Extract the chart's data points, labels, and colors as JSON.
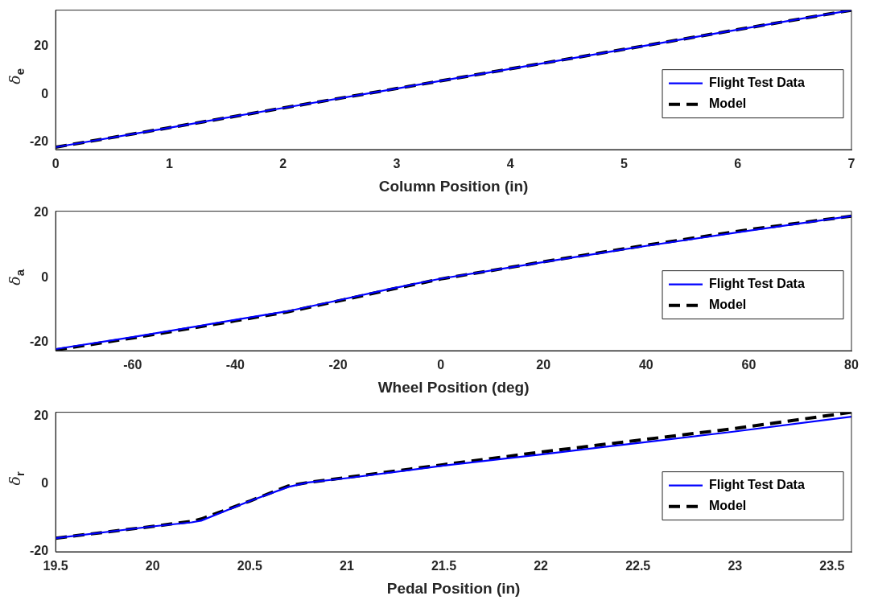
{
  "chart_data": [
    {
      "type": "line",
      "xlabel": "Column Position (in)",
      "ylabel": "δ$_{e}$",
      "xlim": [
        0,
        7
      ],
      "xticks": [
        0,
        1,
        2,
        3,
        4,
        5,
        6,
        7
      ],
      "ylim": [
        -23,
        35
      ],
      "yticks": [
        -20,
        0,
        20
      ],
      "grid": false,
      "legend": "right",
      "marker": "none",
      "series": [
        {
          "name": "Flight Test Data",
          "color": "#0000ff",
          "line_style": "solid",
          "x": [
            0,
            1,
            2,
            3,
            4,
            5,
            6,
            7
          ],
          "values": [
            -22,
            -13.9,
            -5.7,
            2.4,
            10.6,
            18.7,
            26.9,
            35
          ]
        },
        {
          "name": "Model",
          "color": "#000000",
          "line_style": "dashed",
          "x": [
            0,
            1,
            2,
            3,
            4,
            5,
            6,
            7
          ],
          "values": [
            -22,
            -13.9,
            -5.7,
            2.4,
            10.6,
            18.7,
            26.9,
            35
          ]
        }
      ]
    },
    {
      "type": "line",
      "xlabel": "Wheel Position (deg)",
      "ylabel": "δ$_{a}$",
      "xlim": [
        -75,
        80
      ],
      "xticks": [
        -60,
        -40,
        -20,
        0,
        20,
        40,
        60,
        80
      ],
      "ylim": [
        -22.5,
        20.5
      ],
      "yticks": [
        -20,
        0,
        20
      ],
      "grid": false,
      "legend": "right",
      "marker": "none",
      "series": [
        {
          "name": "Flight Test Data",
          "color": "#0000ff",
          "line_style": "solid",
          "x": [
            -75,
            -60,
            -40,
            -30,
            -20,
            -10,
            0,
            20,
            40,
            60,
            80
          ],
          "values": [
            -22,
            -18.3,
            -13,
            -10.4,
            -7,
            -3.5,
            -0.3,
            4.8,
            9.8,
            14.5,
            19
          ]
        },
        {
          "name": "Model",
          "color": "#000000",
          "line_style": "dashed",
          "x": [
            -75,
            -60,
            -40,
            -30,
            -20,
            -10,
            0,
            20,
            40,
            60,
            80
          ],
          "values": [
            -22.3,
            -18.6,
            -13.3,
            -10.6,
            -7.2,
            -3.7,
            -0.4,
            4.9,
            10,
            14.8,
            19
          ]
        }
      ]
    },
    {
      "type": "line",
      "xlabel": "Pedal Position (in)",
      "ylabel": "δ$_{r}$",
      "xlim": [
        19.5,
        23.6
      ],
      "xticks": [
        19.5,
        20,
        20.5,
        21,
        21.5,
        22,
        22.5,
        23,
        23.5
      ],
      "ylim": [
        -20,
        21.3
      ],
      "yticks": [
        -20,
        0,
        20
      ],
      "grid": false,
      "legend": "right",
      "marker": "none",
      "series": [
        {
          "name": "Flight Test Data",
          "color": "#0000ff",
          "line_style": "solid",
          "x": [
            19.5,
            20,
            20.2,
            20.25,
            20.5,
            20.7,
            20.8,
            21,
            21.5,
            22,
            22.5,
            23,
            23.6
          ],
          "values": [
            -16,
            -12.5,
            -11.3,
            -10.8,
            -5,
            -0.8,
            0.5,
            1.8,
            5.5,
            8.8,
            12.2,
            15.6,
            20
          ]
        },
        {
          "name": "Model",
          "color": "#000000",
          "line_style": "dashed",
          "x": [
            19.5,
            20,
            20.2,
            20.25,
            20.5,
            20.7,
            20.8,
            21,
            21.5,
            22,
            22.5,
            23,
            23.6
          ],
          "values": [
            -16,
            -12.5,
            -11,
            -10.3,
            -5,
            -0.5,
            0.5,
            2,
            5.8,
            9.5,
            13,
            16.5,
            21.3
          ]
        }
      ]
    }
  ]
}
